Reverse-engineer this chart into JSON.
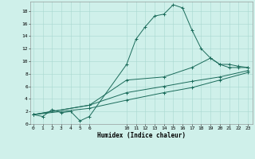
{
  "xlabel": "Humidex (Indice chaleur)",
  "bg_color": "#cff0ea",
  "line_color": "#1a6b5a",
  "grid_color": "#a8d8d0",
  "lines": [
    {
      "x": [
        0,
        1,
        2,
        3,
        4,
        5,
        6,
        10,
        11,
        12,
        13,
        14,
        15,
        16,
        17,
        18,
        19,
        20,
        21,
        22,
        23
      ],
      "y": [
        1.5,
        1.2,
        2.3,
        1.8,
        2.0,
        0.5,
        1.2,
        9.5,
        13.5,
        15.5,
        17.2,
        17.5,
        19.0,
        18.5,
        15.0,
        12.0,
        10.5,
        9.5,
        9.0,
        9.0,
        9.0
      ]
    },
    {
      "x": [
        0,
        6,
        10,
        14,
        17,
        19,
        20,
        21,
        22,
        23
      ],
      "y": [
        1.5,
        3.0,
        7.0,
        7.5,
        9.0,
        10.5,
        9.5,
        9.5,
        9.2,
        9.0
      ]
    },
    {
      "x": [
        0,
        6,
        10,
        14,
        17,
        20,
        23
      ],
      "y": [
        1.5,
        3.0,
        5.0,
        6.0,
        6.8,
        7.5,
        8.5
      ]
    },
    {
      "x": [
        0,
        6,
        10,
        14,
        17,
        20,
        23
      ],
      "y": [
        1.5,
        2.5,
        3.8,
        5.0,
        5.8,
        7.0,
        8.2
      ]
    }
  ],
  "xticks": [
    0,
    1,
    2,
    3,
    4,
    5,
    6,
    10,
    11,
    12,
    13,
    14,
    15,
    16,
    17,
    18,
    19,
    20,
    21,
    22,
    23
  ],
  "yticks": [
    0,
    2,
    4,
    6,
    8,
    10,
    12,
    14,
    16,
    18
  ],
  "xlim": [
    -0.3,
    23.5
  ],
  "ylim": [
    0,
    19.5
  ]
}
